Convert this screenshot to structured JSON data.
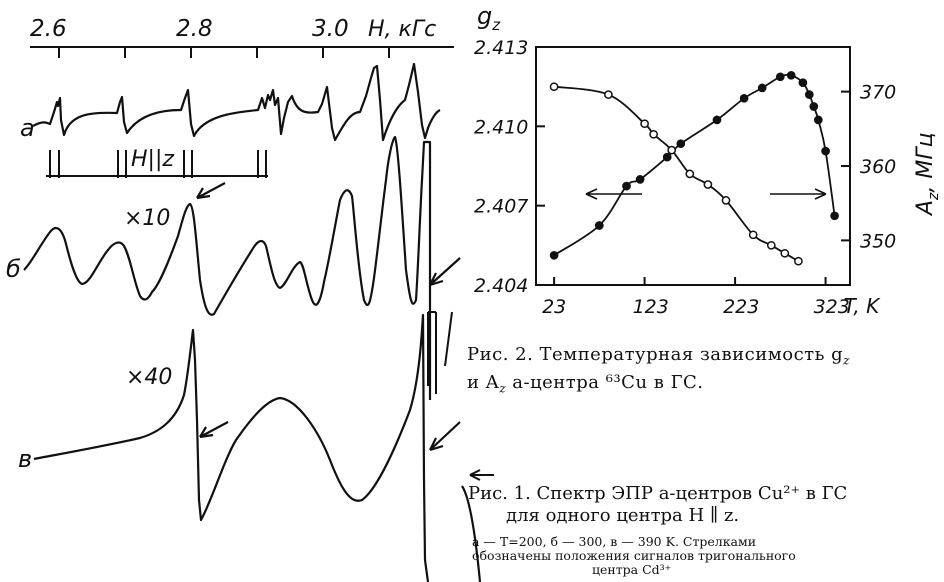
{
  "figure1": {
    "axis_ticks": [
      "2.6",
      "2.8",
      "3.0"
    ],
    "axis_unit": "Н, кГс",
    "trace_labels": {
      "a": "а",
      "b": "б",
      "v": "в"
    },
    "gain_b": "×10",
    "gain_v": "×40",
    "orientation_label": "H||z",
    "caption_line1": "Рис. 1. Спектр ЭПР а-центров Cu²⁺ в ГС",
    "caption_line2": "для одного центра H ∥ z.",
    "caption_small1": "а — T=200,  б — 300,  в — 390 K.  Стрелками",
    "caption_small2": "обозначены положения сигналов тригонального",
    "caption_small3": "центра Cd³⁺"
  },
  "figure2": {
    "caption_line1": "Рис.  2.  Температурная  зависимость  g",
    "caption_line1_sub": "z",
    "caption_line2": "и  A",
    "caption_line2_sub": "z",
    "caption_line2_rest": "  а-центра  ⁶³Cu  в  ГС."
  },
  "chart_data": {
    "type": "scatter",
    "xlabel": "T, K",
    "ylabel_left": "g_z",
    "ylabel_right": "A_z, МГц",
    "x_ticks": [
      "23",
      "123",
      "223",
      "323"
    ],
    "y_left_ticks": [
      "2.404",
      "2.407",
      "2.410",
      "2.413"
    ],
    "y_right_ticks": [
      "350",
      "360",
      "370"
    ],
    "xlim": [
      3,
      350
    ],
    "ylim_left": [
      2.404,
      2.413
    ],
    "ylim_right": [
      344,
      376
    ],
    "series": [
      {
        "name": "g_z",
        "marker": "open-circle",
        "axis": "left",
        "x": [
          23,
          83,
          123,
          133,
          153,
          173,
          193,
          213,
          243,
          263,
          278,
          293
        ],
        "y": [
          2.4115,
          2.4112,
          2.4101,
          2.4097,
          2.4091,
          2.4082,
          2.4078,
          2.4072,
          2.4059,
          2.4055,
          2.4052,
          2.4049
        ]
      },
      {
        "name": "A_z",
        "marker": "filled-circle",
        "axis": "right",
        "x": [
          23,
          73,
          103,
          118,
          148,
          163,
          203,
          233,
          253,
          273,
          285,
          298,
          305,
          310,
          315,
          323,
          333
        ],
        "y": [
          348,
          352,
          357.3,
          358.2,
          361.2,
          363,
          366.2,
          369.1,
          370.5,
          372,
          372.2,
          371.2,
          369.6,
          368,
          366.2,
          362,
          353.3
        ]
      }
    ]
  }
}
